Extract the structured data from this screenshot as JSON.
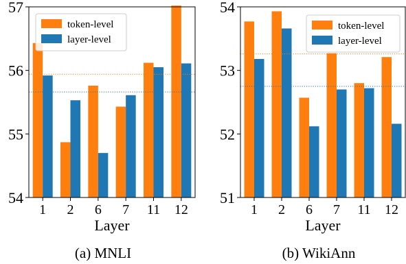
{
  "chart_data": [
    {
      "type": "bar",
      "caption": "(a) MNLI",
      "categories": [
        "1",
        "2",
        "6",
        "7",
        "11",
        "12"
      ],
      "xlabel": "Layer",
      "ylabel": "",
      "ylim": [
        54,
        57
      ],
      "yticks": [
        54,
        55,
        56,
        57
      ],
      "legend_position": "top-left",
      "series": [
        {
          "name": "token-level",
          "color": "#ff7f0e",
          "values": [
            56.43,
            54.87,
            55.76,
            55.43,
            56.12,
            57.02
          ]
        },
        {
          "name": "layer-level",
          "color": "#1f77b4",
          "values": [
            55.92,
            55.53,
            54.7,
            55.61,
            56.05,
            56.11
          ]
        }
      ],
      "reference_lines": [
        {
          "value": 55.94,
          "color": "#ff7f0e",
          "style": "dotted"
        },
        {
          "value": 55.66,
          "color": "#1f77b4",
          "style": "dotted"
        }
      ]
    },
    {
      "type": "bar",
      "caption": "(b) WikiAnn",
      "categories": [
        "1",
        "2",
        "6",
        "7",
        "11",
        "12"
      ],
      "xlabel": "Layer",
      "ylabel": "",
      "ylim": [
        51,
        54
      ],
      "yticks": [
        51,
        52,
        53,
        54
      ],
      "legend_position": "top-right",
      "series": [
        {
          "name": "token-level",
          "color": "#ff7f0e",
          "values": [
            53.77,
            53.93,
            52.57,
            53.27,
            52.8,
            53.21
          ]
        },
        {
          "name": "layer-level",
          "color": "#1f77b4",
          "values": [
            53.18,
            53.66,
            52.12,
            52.7,
            52.72,
            52.16
          ]
        }
      ],
      "reference_lines": [
        {
          "value": 53.26,
          "color": "#ff7f0e",
          "style": "dotted"
        },
        {
          "value": 52.75,
          "color": "#1f77b4",
          "style": "dotted"
        }
      ]
    }
  ]
}
